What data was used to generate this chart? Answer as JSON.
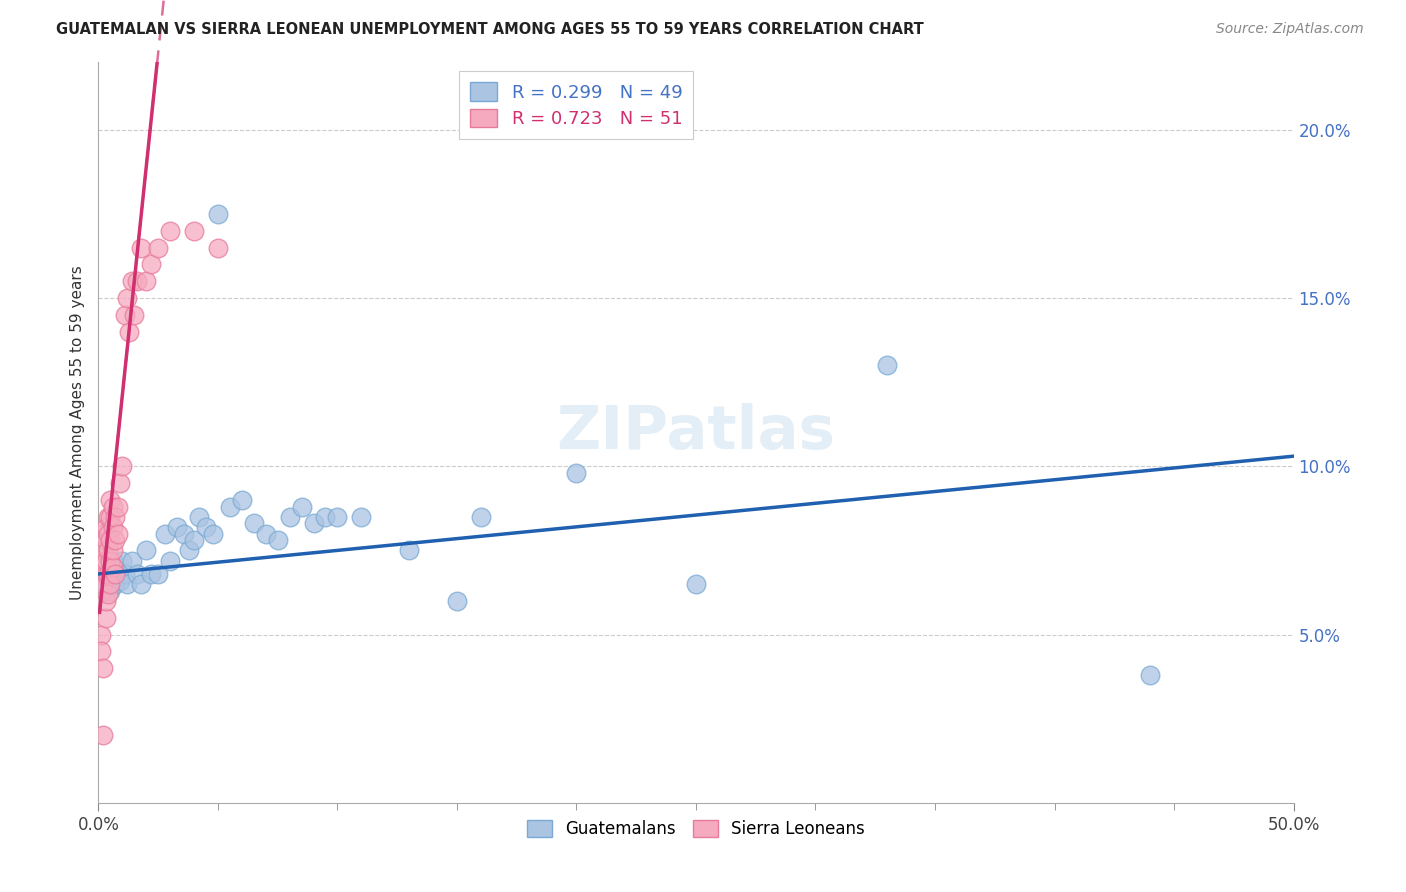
{
  "title": "GUATEMALAN VS SIERRA LEONEAN UNEMPLOYMENT AMONG AGES 55 TO 59 YEARS CORRELATION CHART",
  "source": "Source: ZipAtlas.com",
  "ylabel": "Unemployment Among Ages 55 to 59 years",
  "xlim": [
    0,
    0.5
  ],
  "ylim": [
    0,
    0.22
  ],
  "guatemalan_color": "#aac4e2",
  "guatemalan_edge": "#7aaad4",
  "sierraleone_color": "#f5aabf",
  "sierraleone_edge": "#e87a9a",
  "line_blue": "#2060b0",
  "line_pink": "#d03070",
  "line_blue_start_y": 0.068,
  "line_blue_end_y": 0.103,
  "watermark_text": "ZIPatlas",
  "legend_r1": "R = 0.299",
  "legend_n1": "N = 49",
  "legend_r2": "R = 0.723",
  "legend_n2": "N = 51",
  "guatemalan_x": [
    0.001,
    0.002,
    0.002,
    0.003,
    0.003,
    0.004,
    0.005,
    0.005,
    0.006,
    0.007,
    0.008,
    0.009,
    0.01,
    0.011,
    0.012,
    0.014,
    0.016,
    0.018,
    0.02,
    0.022,
    0.025,
    0.028,
    0.03,
    0.033,
    0.036,
    0.038,
    0.04,
    0.042,
    0.045,
    0.048,
    0.05,
    0.055,
    0.06,
    0.065,
    0.07,
    0.075,
    0.08,
    0.085,
    0.09,
    0.095,
    0.1,
    0.11,
    0.13,
    0.15,
    0.16,
    0.2,
    0.25,
    0.33,
    0.44
  ],
  "guatemalan_y": [
    0.068,
    0.063,
    0.068,
    0.065,
    0.07,
    0.067,
    0.063,
    0.068,
    0.072,
    0.065,
    0.068,
    0.066,
    0.072,
    0.068,
    0.065,
    0.072,
    0.068,
    0.065,
    0.075,
    0.068,
    0.068,
    0.08,
    0.072,
    0.082,
    0.08,
    0.075,
    0.078,
    0.085,
    0.082,
    0.08,
    0.175,
    0.088,
    0.09,
    0.083,
    0.08,
    0.078,
    0.085,
    0.088,
    0.083,
    0.085,
    0.085,
    0.085,
    0.075,
    0.06,
    0.085,
    0.098,
    0.065,
    0.13,
    0.038
  ],
  "sierraleone_x": [
    0.001,
    0.001,
    0.001,
    0.001,
    0.001,
    0.002,
    0.002,
    0.002,
    0.002,
    0.002,
    0.002,
    0.003,
    0.003,
    0.003,
    0.003,
    0.003,
    0.003,
    0.004,
    0.004,
    0.004,
    0.004,
    0.004,
    0.005,
    0.005,
    0.005,
    0.005,
    0.005,
    0.006,
    0.006,
    0.006,
    0.006,
    0.007,
    0.007,
    0.007,
    0.008,
    0.008,
    0.009,
    0.01,
    0.011,
    0.012,
    0.013,
    0.014,
    0.015,
    0.016,
    0.018,
    0.02,
    0.022,
    0.025,
    0.03,
    0.04,
    0.05
  ],
  "sierraleone_y": [
    0.068,
    0.07,
    0.072,
    0.05,
    0.045,
    0.04,
    0.065,
    0.07,
    0.075,
    0.08,
    0.02,
    0.055,
    0.06,
    0.068,
    0.072,
    0.078,
    0.082,
    0.062,
    0.068,
    0.075,
    0.08,
    0.085,
    0.065,
    0.072,
    0.078,
    0.085,
    0.09,
    0.07,
    0.075,
    0.082,
    0.088,
    0.068,
    0.078,
    0.085,
    0.08,
    0.088,
    0.095,
    0.1,
    0.145,
    0.15,
    0.14,
    0.155,
    0.145,
    0.155,
    0.165,
    0.155,
    0.16,
    0.165,
    0.17,
    0.17,
    0.165
  ]
}
